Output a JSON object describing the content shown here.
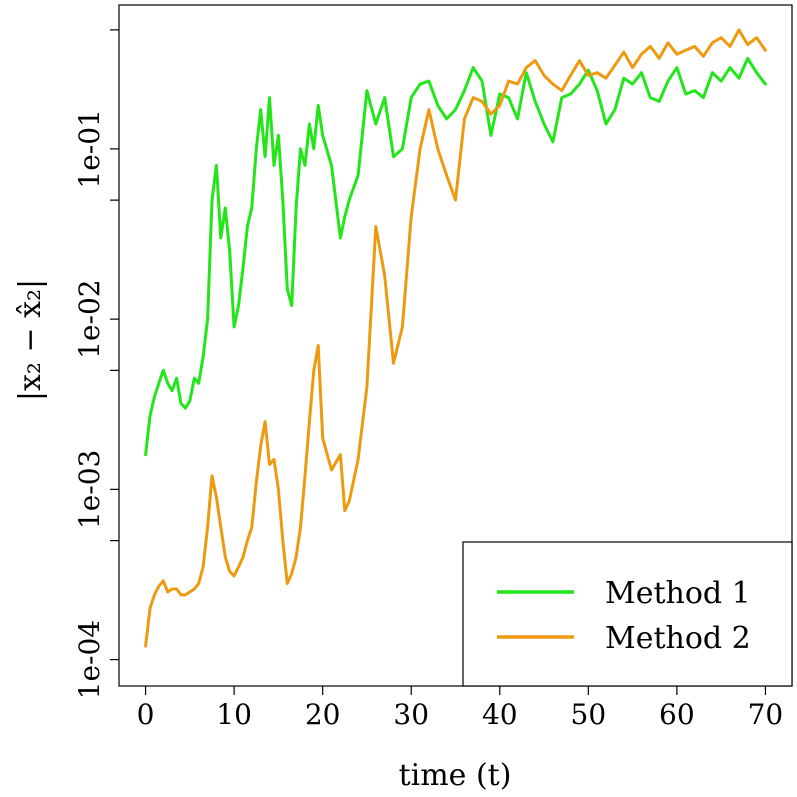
{
  "chart_data": {
    "type": "line",
    "title": "",
    "xlabel": "time (t)",
    "ylabel": "|x₂ − x̂₂|",
    "xlim": [
      -3,
      73
    ],
    "ylim": [
      7e-05,
      0.7
    ],
    "y_scale": "log",
    "x_ticks": [
      0,
      10,
      20,
      30,
      40,
      50,
      60,
      70
    ],
    "x_tick_labels": [
      "0",
      "10",
      "20",
      "30",
      "40",
      "50",
      "60",
      "70"
    ],
    "y_ticks": [
      0.0001,
      0.001,
      0.01,
      0.1
    ],
    "y_tick_labels": [
      "1e-04",
      "1e-03",
      "1e-02",
      "1e-01"
    ],
    "y_minor_ticks": [
      0.0005,
      0.005,
      0.05,
      0.5
    ],
    "legend_position": "bottom-right",
    "series": [
      {
        "name": "Method 1",
        "color": "#22e61a",
        "x": [
          0,
          0.5,
          1,
          1.5,
          2,
          2.5,
          3,
          3.5,
          4,
          4.5,
          5,
          5.5,
          6,
          6.5,
          7,
          7.5,
          8,
          8.5,
          9,
          9.5,
          10,
          10.5,
          11,
          11.5,
          12,
          12.5,
          13,
          13.5,
          14,
          14.5,
          15,
          15.5,
          16,
          16.5,
          17,
          17.5,
          18,
          18.5,
          19,
          19.5,
          20,
          21,
          22,
          22.5,
          23,
          24,
          25,
          26,
          27,
          28,
          29,
          30,
          31,
          32,
          33,
          34,
          35,
          36,
          37,
          38,
          39,
          40,
          41,
          42,
          43,
          44,
          45,
          46,
          47,
          48,
          49,
          50,
          51,
          52,
          53,
          54,
          55,
          56,
          57,
          58,
          59,
          60,
          61,
          62,
          63,
          64,
          65,
          66,
          67,
          68,
          69,
          70
        ],
        "y": [
          0.0016,
          0.0027,
          0.0035,
          0.0042,
          0.005,
          0.0042,
          0.0038,
          0.0045,
          0.0032,
          0.003,
          0.0033,
          0.0045,
          0.0042,
          0.006,
          0.01,
          0.05,
          0.08,
          0.03,
          0.045,
          0.025,
          0.009,
          0.012,
          0.02,
          0.035,
          0.045,
          0.1,
          0.17,
          0.09,
          0.2,
          0.08,
          0.12,
          0.05,
          0.015,
          0.012,
          0.045,
          0.1,
          0.08,
          0.14,
          0.1,
          0.18,
          0.12,
          0.08,
          0.03,
          0.04,
          0.05,
          0.07,
          0.22,
          0.14,
          0.2,
          0.09,
          0.1,
          0.2,
          0.24,
          0.25,
          0.18,
          0.15,
          0.17,
          0.22,
          0.3,
          0.25,
          0.12,
          0.21,
          0.2,
          0.15,
          0.28,
          0.19,
          0.14,
          0.11,
          0.2,
          0.21,
          0.24,
          0.29,
          0.22,
          0.14,
          0.17,
          0.26,
          0.24,
          0.28,
          0.2,
          0.19,
          0.25,
          0.3,
          0.21,
          0.22,
          0.2,
          0.28,
          0.25,
          0.3,
          0.26,
          0.34,
          0.28,
          0.24
        ]
      },
      {
        "name": "Method 2",
        "color": "#ee9a10",
        "x": [
          0,
          0.5,
          1,
          1.5,
          2,
          2.5,
          3,
          3.5,
          4,
          4.5,
          5,
          5.5,
          6,
          6.5,
          7,
          7.5,
          8,
          8.5,
          9,
          9.5,
          10,
          10.5,
          11,
          11.5,
          12,
          12.5,
          13,
          13.5,
          14,
          14.5,
          15,
          15.5,
          16,
          16.5,
          17,
          17.5,
          18,
          18.5,
          19,
          19.5,
          20,
          21,
          22,
          22.5,
          23,
          24,
          25,
          26,
          27,
          28,
          29,
          30,
          31,
          32,
          33,
          34,
          35,
          36,
          37,
          38,
          39,
          40,
          41,
          42,
          43,
          44,
          45,
          46,
          47,
          48,
          49,
          50,
          51,
          52,
          53,
          54,
          55,
          56,
          57,
          58,
          59,
          60,
          61,
          62,
          63,
          64,
          65,
          66,
          67,
          68,
          69,
          70
        ],
        "y": [
          0.00012,
          0.0002,
          0.00024,
          0.00027,
          0.00029,
          0.00025,
          0.00026,
          0.00026,
          0.00024,
          0.00024,
          0.00025,
          0.00026,
          0.00028,
          0.00035,
          0.0006,
          0.0012,
          0.0009,
          0.0006,
          0.0004,
          0.00033,
          0.00031,
          0.00035,
          0.0004,
          0.0005,
          0.0006,
          0.0011,
          0.0018,
          0.0025,
          0.0014,
          0.0015,
          0.001,
          0.0005,
          0.00028,
          0.00032,
          0.0004,
          0.0006,
          0.0012,
          0.0025,
          0.005,
          0.007,
          0.002,
          0.0013,
          0.0016,
          0.00075,
          0.00085,
          0.0015,
          0.004,
          0.035,
          0.018,
          0.0055,
          0.009,
          0.04,
          0.1,
          0.17,
          0.1,
          0.07,
          0.05,
          0.15,
          0.2,
          0.19,
          0.16,
          0.18,
          0.25,
          0.24,
          0.3,
          0.33,
          0.27,
          0.24,
          0.22,
          0.27,
          0.33,
          0.27,
          0.28,
          0.26,
          0.31,
          0.37,
          0.3,
          0.36,
          0.4,
          0.34,
          0.42,
          0.36,
          0.38,
          0.4,
          0.35,
          0.42,
          0.45,
          0.4,
          0.5,
          0.41,
          0.45,
          0.38
        ]
      }
    ]
  }
}
